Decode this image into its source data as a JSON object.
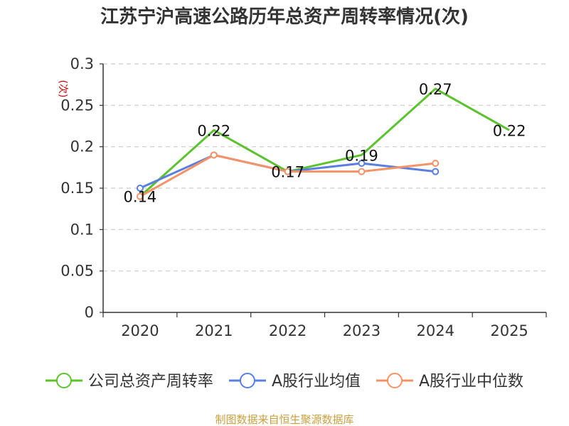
{
  "chart_data": {
    "type": "line",
    "title": "江苏宁沪高速公路历年总资产周转率情况(次)",
    "ylabel": "(次)",
    "xlabel": "",
    "categories": [
      "2020",
      "2021",
      "2022",
      "2023",
      "2024",
      "2025"
    ],
    "ylim": [
      0,
      0.3
    ],
    "yticks": [
      0,
      0.05,
      0.1,
      0.15,
      0.2,
      0.25,
      0.3
    ],
    "ytick_labels": [
      "0",
      "0.05",
      "0.1",
      "0.15",
      "0.2",
      "0.25",
      "0.3"
    ],
    "grid": true,
    "legend_position": "bottom",
    "series": [
      {
        "name": "公司总资产周转率",
        "color": "#5cc22e",
        "values": [
          0.14,
          0.22,
          0.17,
          0.19,
          0.27,
          0.22
        ],
        "labels": [
          "0.14",
          "0.22",
          "0.17",
          "0.19",
          "0.27",
          "0.22"
        ]
      },
      {
        "name": "A股行业均值",
        "color": "#5b7fe0",
        "values": [
          0.15,
          0.19,
          0.17,
          0.18,
          0.17,
          null
        ]
      },
      {
        "name": "A股行业中位数",
        "color": "#f59366",
        "values": [
          0.14,
          0.19,
          0.17,
          0.17,
          0.18,
          null
        ]
      }
    ]
  },
  "footer": {
    "source": "制图数据来自恒生聚源数据库"
  }
}
